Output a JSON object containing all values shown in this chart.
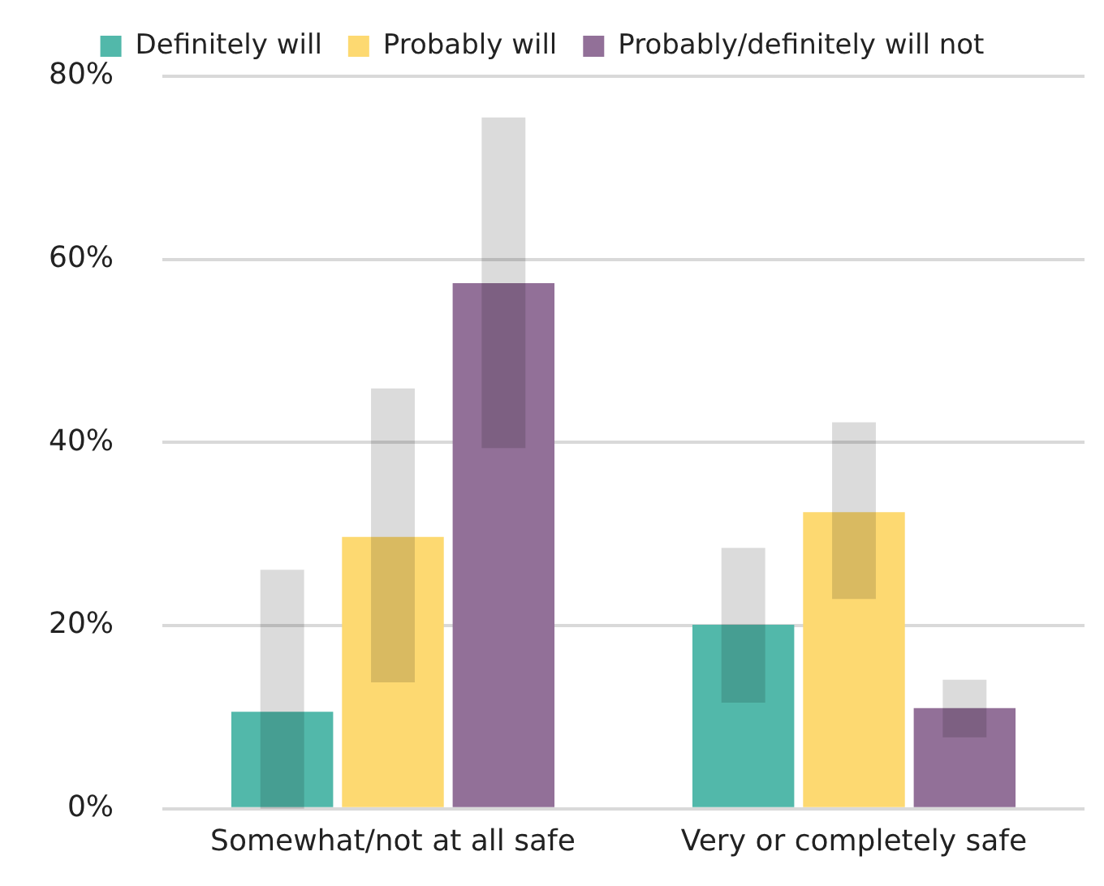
{
  "chart_data": {
    "type": "bar",
    "categories": [
      "Somewhat/not at all safe",
      "Very or completely safe"
    ],
    "series": [
      {
        "name": "Definitely will",
        "color": "#52b8aa",
        "values": [
          10.6,
          20.1
        ],
        "errors": [
          [
            0,
            26.1
          ],
          [
            11.6,
            28.5
          ]
        ]
      },
      {
        "name": "Probably will",
        "color": "#fdd971",
        "values": [
          29.7,
          32.4
        ],
        "errors": [
          [
            13.8,
            45.9
          ],
          [
            22.9,
            42.2
          ]
        ]
      },
      {
        "name": "Probably/definitely will not",
        "color": "#927098",
        "values": [
          57.4,
          11.0
        ],
        "errors": [
          [
            39.4,
            75.5
          ],
          [
            7.8,
            14.1
          ]
        ]
      }
    ],
    "ylim": [
      0,
      80
    ],
    "yticks": [
      {
        "value": 0,
        "label": "0%"
      },
      {
        "value": 20,
        "label": "20%"
      },
      {
        "value": 40,
        "label": "40%"
      },
      {
        "value": 60,
        "label": "60%"
      },
      {
        "value": 80,
        "label": "80%"
      }
    ],
    "grid": "y",
    "legend": "top"
  }
}
